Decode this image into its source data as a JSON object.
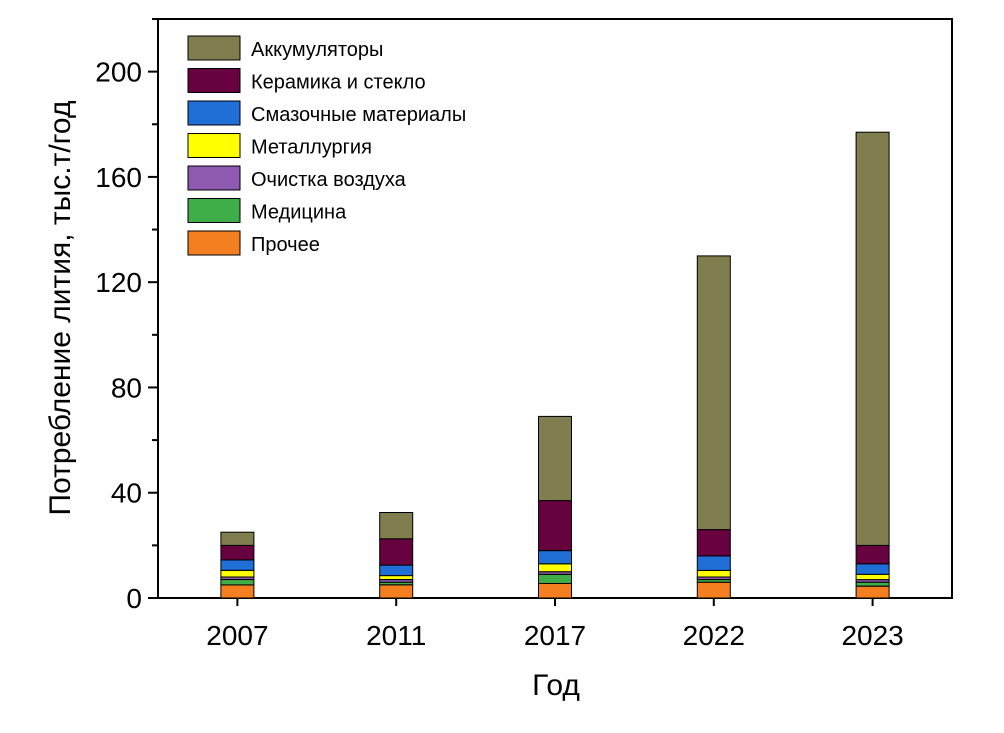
{
  "chart_data": {
    "type": "bar",
    "stacked": true,
    "title": "",
    "xlabel": "Год",
    "ylabel": "Потребление лития, тыс.т/год",
    "ylim": [
      0,
      220
    ],
    "yticks": [
      0,
      40,
      80,
      120,
      160,
      200
    ],
    "ytick_labels": [
      "0",
      "40",
      "80",
      "120",
      "160",
      "200"
    ],
    "categories": [
      "2007",
      "2011",
      "2017",
      "2022",
      "2023"
    ],
    "legend_position": "top-left",
    "series": [
      {
        "name": "Прочее",
        "color": "#f47f20",
        "values": [
          5,
          5,
          5.5,
          6,
          4.5
        ]
      },
      {
        "name": "Медицина",
        "color": "#3fae49",
        "values": [
          2,
          1,
          3.5,
          1,
          1.5
        ]
      },
      {
        "name": "Очистка воздуха",
        "color": "#8e59b0",
        "values": [
          1,
          1,
          1,
          1,
          1
        ]
      },
      {
        "name": "Металлургия",
        "color": "#ffff00",
        "values": [
          2.5,
          1.5,
          3,
          2.5,
          2
        ]
      },
      {
        "name": "Смазочные материалы",
        "color": "#1f6fd6",
        "values": [
          4,
          4,
          5,
          5.5,
          4
        ]
      },
      {
        "name": "Керамика и стекло",
        "color": "#670140",
        "values": [
          5.5,
          10,
          19,
          10,
          7
        ]
      },
      {
        "name": "Аккумуляторы",
        "color": "#807d4e",
        "values": [
          5,
          10,
          32,
          104,
          157
        ]
      }
    ],
    "legend_order": [
      "Аккумуляторы",
      "Керамика и стекло",
      "Смазочные материалы",
      "Металлургия",
      "Очистка воздуха",
      "Медицина",
      "Прочее"
    ]
  }
}
